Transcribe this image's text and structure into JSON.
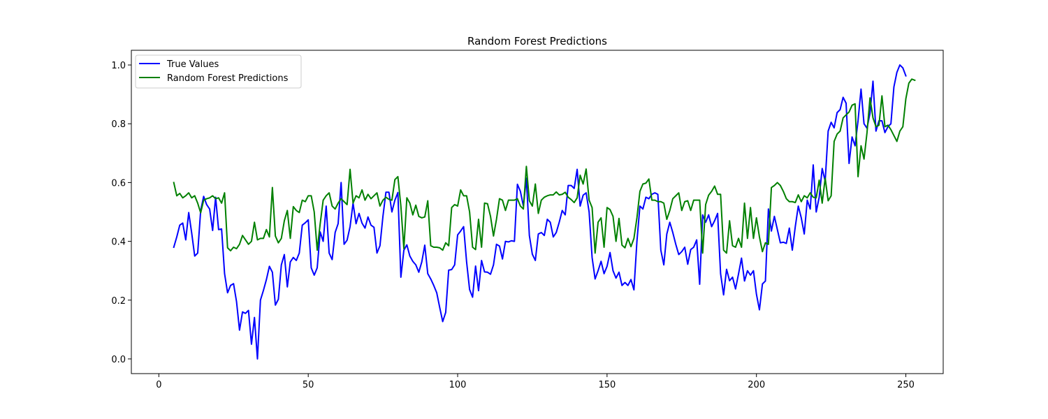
{
  "chart_data": {
    "type": "line",
    "title": "Random Forest Predictions",
    "xlabel": "",
    "ylabel": "",
    "xlim": [
      -9.2,
      262.5
    ],
    "ylim": [
      -0.05,
      1.05
    ],
    "x_ticks": [
      0,
      50,
      100,
      150,
      200,
      250
    ],
    "y_ticks": [
      0.0,
      0.2,
      0.4,
      0.6,
      0.8,
      1.0
    ],
    "y_tick_labels": [
      "0.0",
      "0.2",
      "0.4",
      "0.6",
      "0.8",
      "1.0"
    ],
    "grid": false,
    "legend": "top-left",
    "x_start": 5,
    "series": [
      {
        "name": "True Values",
        "color": "#0000ff",
        "values": [
          0.38,
          0.415,
          0.455,
          0.462,
          0.405,
          0.498,
          0.428,
          0.35,
          0.36,
          0.505,
          0.553,
          0.525,
          0.51,
          0.437,
          0.55,
          0.44,
          0.442,
          0.29,
          0.225,
          0.25,
          0.256,
          0.195,
          0.098,
          0.16,
          0.155,
          0.165,
          0.05,
          0.141,
          0.0,
          0.2,
          0.233,
          0.27,
          0.315,
          0.295,
          0.183,
          0.203,
          0.32,
          0.355,
          0.245,
          0.33,
          0.345,
          0.335,
          0.36,
          0.455,
          0.463,
          0.473,
          0.31,
          0.285,
          0.31,
          0.432,
          0.4,
          0.52,
          0.36,
          0.338,
          0.43,
          0.46,
          0.6,
          0.39,
          0.404,
          0.45,
          0.53,
          0.46,
          0.495,
          0.462,
          0.445,
          0.483,
          0.455,
          0.448,
          0.36,
          0.385,
          0.485,
          0.567,
          0.567,
          0.5,
          0.54,
          0.566,
          0.278,
          0.37,
          0.388,
          0.35,
          0.332,
          0.32,
          0.295,
          0.33,
          0.387,
          0.29,
          0.272,
          0.25,
          0.225,
          0.175,
          0.127,
          0.158,
          0.302,
          0.304,
          0.32,
          0.422,
          0.435,
          0.45,
          0.33,
          0.236,
          0.21,
          0.316,
          0.232,
          0.335,
          0.296,
          0.295,
          0.288,
          0.32,
          0.39,
          0.384,
          0.34,
          0.4,
          0.398,
          0.402,
          0.4,
          0.594,
          0.57,
          0.52,
          0.615,
          0.42,
          0.356,
          0.335,
          0.425,
          0.43,
          0.42,
          0.475,
          0.465,
          0.415,
          0.43,
          0.465,
          0.505,
          0.49,
          0.59,
          0.59,
          0.58,
          0.645,
          0.52,
          0.557,
          0.565,
          0.5,
          0.345,
          0.272,
          0.3,
          0.332,
          0.29,
          0.315,
          0.362,
          0.3,
          0.275,
          0.295,
          0.25,
          0.26,
          0.25,
          0.27,
          0.235,
          0.4,
          0.52,
          0.51,
          0.55,
          0.545,
          0.56,
          0.565,
          0.56,
          0.37,
          0.32,
          0.425,
          0.465,
          0.43,
          0.39,
          0.355,
          0.365,
          0.38,
          0.322,
          0.372,
          0.38,
          0.405,
          0.254,
          0.49,
          0.465,
          0.49,
          0.45,
          0.47,
          0.495,
          0.29,
          0.218,
          0.305,
          0.266,
          0.278,
          0.238,
          0.289,
          0.343,
          0.265,
          0.3,
          0.285,
          0.3,
          0.22,
          0.167,
          0.255,
          0.265,
          0.51,
          0.435,
          0.485,
          0.44,
          0.395,
          0.397,
          0.393,
          0.445,
          0.37,
          0.45,
          0.52,
          0.48,
          0.425,
          0.54,
          0.51,
          0.66,
          0.5,
          0.55,
          0.648,
          0.605,
          0.775,
          0.805,
          0.786,
          0.838,
          0.848,
          0.89,
          0.87,
          0.665,
          0.755,
          0.725,
          0.81,
          0.918,
          0.8,
          0.785,
          0.836,
          0.945,
          0.775,
          0.81,
          0.81,
          0.77,
          0.79,
          0.8,
          0.925,
          0.975,
          1.0,
          0.99,
          0.963
        ]
      },
      {
        "name": "Random Forest Predictions",
        "color": "#008000",
        "values": [
          0.6,
          0.555,
          0.563,
          0.548,
          0.555,
          0.565,
          0.548,
          0.555,
          0.53,
          0.497,
          0.54,
          0.545,
          0.548,
          0.555,
          0.545,
          0.548,
          0.53,
          0.565,
          0.378,
          0.368,
          0.38,
          0.375,
          0.39,
          0.42,
          0.405,
          0.39,
          0.4,
          0.465,
          0.405,
          0.41,
          0.41,
          0.44,
          0.415,
          0.583,
          0.418,
          0.395,
          0.41,
          0.47,
          0.505,
          0.41,
          0.518,
          0.505,
          0.498,
          0.54,
          0.535,
          0.555,
          0.555,
          0.5,
          0.37,
          0.46,
          0.54,
          0.555,
          0.565,
          0.52,
          0.51,
          0.53,
          0.545,
          0.535,
          0.525,
          0.645,
          0.53,
          0.555,
          0.548,
          0.575,
          0.54,
          0.56,
          0.545,
          0.555,
          0.565,
          0.52,
          0.54,
          0.55,
          0.543,
          0.54,
          0.61,
          0.62,
          0.52,
          0.375,
          0.548,
          0.53,
          0.49,
          0.523,
          0.485,
          0.48,
          0.483,
          0.538,
          0.385,
          0.38,
          0.38,
          0.378,
          0.37,
          0.395,
          0.385,
          0.515,
          0.525,
          0.52,
          0.575,
          0.555,
          0.555,
          0.5,
          0.38,
          0.372,
          0.475,
          0.38,
          0.53,
          0.528,
          0.485,
          0.418,
          0.475,
          0.545,
          0.54,
          0.505,
          0.54,
          0.54,
          0.54,
          0.545,
          0.52,
          0.51,
          0.655,
          0.538,
          0.52,
          0.595,
          0.495,
          0.54,
          0.55,
          0.555,
          0.558,
          0.558,
          0.568,
          0.558,
          0.56,
          0.567,
          0.55,
          0.542,
          0.532,
          0.548,
          0.625,
          0.595,
          0.646,
          0.54,
          0.515,
          0.36,
          0.465,
          0.48,
          0.38,
          0.515,
          0.508,
          0.485,
          0.4,
          0.478,
          0.387,
          0.378,
          0.41,
          0.382,
          0.41,
          0.48,
          0.57,
          0.595,
          0.598,
          0.612,
          0.54,
          0.54,
          0.535,
          0.535,
          0.53,
          0.475,
          0.505,
          0.545,
          0.555,
          0.565,
          0.505,
          0.535,
          0.538,
          0.505,
          0.54,
          0.54,
          0.54,
          0.36,
          0.525,
          0.557,
          0.57,
          0.588,
          0.56,
          0.56,
          0.37,
          0.36,
          0.47,
          0.385,
          0.38,
          0.41,
          0.38,
          0.53,
          0.41,
          0.515,
          0.41,
          0.48,
          0.415,
          0.365,
          0.395,
          0.39,
          0.583,
          0.59,
          0.6,
          0.59,
          0.57,
          0.545,
          0.535,
          0.535,
          0.532,
          0.558,
          0.535,
          0.555,
          0.548,
          0.565,
          0.55,
          0.548,
          0.608,
          0.53,
          0.615,
          0.538,
          0.555,
          0.74,
          0.765,
          0.775,
          0.82,
          0.83,
          0.84,
          0.863,
          0.868,
          0.62,
          0.725,
          0.68,
          0.77,
          0.888,
          0.82,
          0.79,
          0.795,
          0.895,
          0.79,
          0.795,
          0.78,
          0.76,
          0.74,
          0.775,
          0.79,
          0.885,
          0.938,
          0.952,
          0.948
        ]
      }
    ]
  }
}
